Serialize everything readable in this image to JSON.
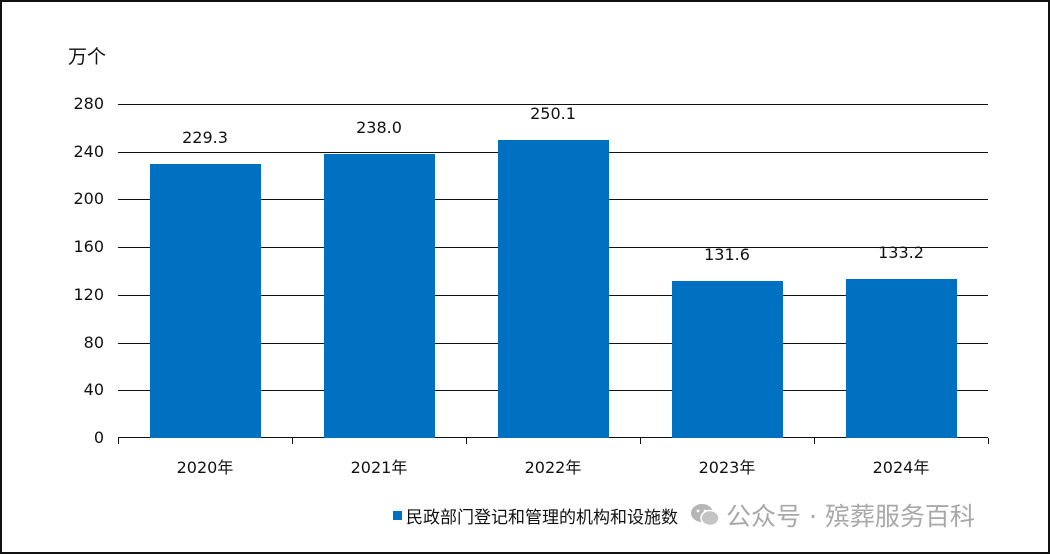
{
  "chart_data": {
    "type": "bar",
    "title": "",
    "ylabel": "万个",
    "xlabel": "",
    "categories": [
      "2020年",
      "2021年",
      "2022年",
      "2023年",
      "2024年"
    ],
    "series": [
      {
        "name": "民政部门登记和管理的机构和设施数",
        "values": [
          229.3,
          238.0,
          250.1,
          131.6,
          133.2
        ],
        "color": "#0070C0"
      }
    ],
    "value_labels": [
      "229.3",
      "238.0",
      "250.1",
      "131.6",
      "133.2"
    ],
    "ylim": [
      0,
      280
    ],
    "yticks": [
      "0",
      "40",
      "80",
      "120",
      "160",
      "200",
      "240",
      "280"
    ],
    "grid": true,
    "legend_position": "bottom"
  },
  "watermark": {
    "text": "公众号 · 殡葬服务百科",
    "icon": "wechat-icon"
  }
}
